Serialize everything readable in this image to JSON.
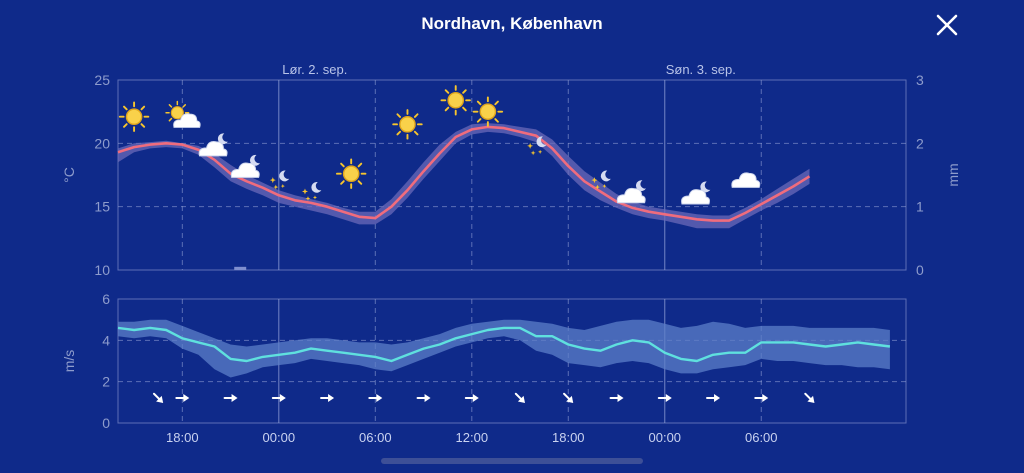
{
  "header": {
    "title": "Nordhavn, København",
    "close_icon": "close-icon"
  },
  "colors": {
    "background": "#0f2a8a",
    "temp_line": "#f06c7d",
    "temp_band": "#6b69b8",
    "wind_line": "#5fe0de",
    "wind_band": "#5c7fc8",
    "grid": "#8f9ed4"
  },
  "chart_data": [
    {
      "type": "line",
      "name": "temperature",
      "ylabel": "°C",
      "ylim": [
        10,
        25
      ],
      "yticks": [
        "10",
        "15",
        "20",
        "25"
      ],
      "y2label": "mm",
      "y2lim": [
        0,
        3
      ],
      "y2ticks": [
        "0",
        "1",
        "2",
        "3"
      ],
      "day_labels": [
        {
          "hour": 24,
          "label": "Lør. 2. sep."
        },
        {
          "hour": 48,
          "label": "Søn. 3. sep."
        }
      ],
      "x_hours": [
        14,
        15,
        16,
        17,
        18,
        19,
        20,
        21,
        22,
        23,
        24,
        25,
        26,
        27,
        28,
        29,
        30,
        31,
        32,
        33,
        34,
        35,
        36,
        37,
        38,
        39,
        40,
        41,
        42,
        43,
        44,
        45,
        46,
        47,
        48,
        49,
        50,
        51,
        52,
        53,
        54,
        55,
        56,
        57,
        58,
        59,
        60,
        61,
        62,
        63
      ],
      "temperature": [
        19.3,
        19.7,
        19.9,
        20.0,
        19.9,
        19.5,
        18.7,
        17.6,
        17.0,
        16.5,
        15.9,
        15.5,
        15.3,
        15.0,
        14.6,
        14.2,
        14.1,
        15.0,
        16.3,
        17.8,
        19.2,
        20.5,
        21.1,
        21.3,
        21.2,
        20.9,
        20.6,
        19.6,
        18.2,
        17.0,
        16.2,
        15.4,
        14.9,
        14.6,
        14.4,
        14.2,
        14.0,
        13.9,
        13.9,
        14.5,
        15.2,
        15.9,
        16.6,
        17.4
      ],
      "temp_high": [
        19.6,
        20.0,
        20.1,
        20.2,
        20.0,
        19.8,
        19.2,
        18.3,
        17.5,
        16.9,
        16.3,
        15.9,
        15.6,
        15.3,
        14.9,
        14.6,
        14.6,
        15.6,
        17.0,
        18.5,
        19.9,
        20.9,
        21.5,
        21.6,
        21.5,
        21.3,
        21.1,
        20.3,
        19.0,
        17.8,
        16.9,
        16.0,
        15.4,
        15.0,
        14.8,
        14.6,
        14.4,
        14.3,
        14.3,
        14.9,
        15.6,
        16.4,
        17.2,
        18.0
      ],
      "temp_low": [
        18.5,
        19.3,
        19.6,
        19.7,
        19.6,
        19.1,
        18.1,
        17.0,
        16.4,
        15.9,
        15.3,
        15.0,
        14.7,
        14.4,
        14.0,
        13.6,
        13.6,
        14.4,
        15.7,
        17.2,
        18.6,
        20.0,
        20.7,
        20.9,
        20.8,
        20.5,
        20.1,
        19.0,
        17.5,
        16.3,
        15.5,
        14.9,
        14.4,
        14.1,
        13.9,
        13.6,
        13.3,
        13.3,
        13.3,
        14.0,
        14.7,
        15.3,
        16.0,
        16.8
      ],
      "temp_hours": [
        14,
        15,
        16,
        17,
        18,
        19,
        20,
        21,
        22,
        23,
        24,
        25,
        26,
        27,
        28,
        29,
        30,
        31,
        32,
        33,
        34,
        35,
        36,
        37,
        38,
        39,
        40,
        41,
        42,
        43,
        44,
        45,
        46,
        47,
        48,
        49,
        50,
        51,
        52,
        53,
        54,
        55,
        56,
        57
      ],
      "precip_mm": [
        {
          "hour": 21.6,
          "value": 0.05
        }
      ],
      "weather_symbols": [
        {
          "hour": 15,
          "temp": 22.1,
          "icon": "sun-icon"
        },
        {
          "hour": 18,
          "temp": 22.1,
          "icon": "partly-cloudy-day-icon"
        },
        {
          "hour": 20,
          "temp": 19.8,
          "icon": "cloud-moon-icon"
        },
        {
          "hour": 22,
          "temp": 18.1,
          "icon": "cloud-moon-icon"
        },
        {
          "hour": 24,
          "temp": 17.1,
          "icon": "clear-night-icon"
        },
        {
          "hour": 26,
          "temp": 16.2,
          "icon": "clear-night-icon"
        },
        {
          "hour": 28.5,
          "temp": 17.6,
          "icon": "sun-icon"
        },
        {
          "hour": 32,
          "temp": 21.5,
          "icon": "sun-icon"
        },
        {
          "hour": 35,
          "temp": 23.4,
          "icon": "sun-icon"
        },
        {
          "hour": 37,
          "temp": 22.5,
          "icon": "sun-icon"
        },
        {
          "hour": 40,
          "temp": 19.8,
          "icon": "clear-night-icon"
        },
        {
          "hour": 44,
          "temp": 17.1,
          "icon": "clear-night-icon"
        },
        {
          "hour": 46,
          "temp": 16.1,
          "icon": "cloud-moon-icon"
        },
        {
          "hour": 50,
          "temp": 16.0,
          "icon": "cloud-moon-icon"
        },
        {
          "hour": 53,
          "temp": 17.0,
          "icon": "cloud-icon"
        }
      ]
    },
    {
      "type": "line",
      "name": "wind",
      "ylabel": "m/s",
      "ylim": [
        0,
        6
      ],
      "yticks": [
        "0",
        "2",
        "4",
        "6"
      ],
      "x_ticks": [
        {
          "hour": 18,
          "label": "18:00"
        },
        {
          "hour": 24,
          "label": "00:00"
        },
        {
          "hour": 30,
          "label": "06:00"
        },
        {
          "hour": 36,
          "label": "12:00"
        },
        {
          "hour": 42,
          "label": "18:00"
        },
        {
          "hour": 48,
          "label": "00:00"
        },
        {
          "hour": 54,
          "label": "06:00"
        }
      ],
      "wind_hours": [
        14,
        15,
        16,
        17,
        18,
        19,
        20,
        21,
        22,
        23,
        24,
        25,
        26,
        27,
        28,
        29,
        30,
        31,
        32,
        33,
        34,
        35,
        36,
        37,
        38,
        39,
        40,
        41,
        42,
        43,
        44,
        45,
        46,
        47,
        48,
        49,
        50,
        51,
        52,
        53,
        54,
        55,
        56,
        57,
        58,
        59,
        60,
        61,
        62
      ],
      "wind": [
        4.6,
        4.5,
        4.6,
        4.5,
        4.1,
        3.9,
        3.7,
        3.1,
        3.0,
        3.2,
        3.3,
        3.4,
        3.6,
        3.5,
        3.4,
        3.3,
        3.2,
        3.0,
        3.3,
        3.6,
        3.8,
        4.1,
        4.3,
        4.5,
        4.6,
        4.6,
        4.2,
        4.2,
        3.8,
        3.6,
        3.5,
        3.8,
        4.0,
        3.9,
        3.4,
        3.1,
        3.0,
        3.3,
        3.4,
        3.4,
        3.9,
        3.9,
        3.9,
        3.8,
        3.7,
        3.8,
        3.9,
        3.8,
        3.7
      ],
      "wind_high": [
        4.9,
        4.9,
        5.0,
        5.0,
        4.7,
        4.4,
        4.1,
        3.8,
        3.7,
        3.8,
        3.9,
        4.0,
        4.1,
        4.1,
        4.0,
        3.9,
        3.9,
        3.8,
        3.9,
        4.1,
        4.3,
        4.6,
        4.8,
        4.9,
        5.0,
        5.0,
        4.9,
        4.8,
        4.6,
        4.5,
        4.7,
        4.9,
        5.0,
        5.0,
        4.8,
        4.6,
        4.7,
        4.9,
        4.8,
        4.6,
        4.7,
        4.7,
        4.7,
        4.6,
        4.6,
        4.6,
        4.6,
        4.6,
        4.5
      ],
      "wind_low": [
        4.2,
        4.1,
        4.2,
        4.1,
        3.6,
        3.3,
        2.6,
        2.2,
        2.4,
        2.7,
        2.8,
        2.9,
        3.1,
        3.0,
        2.9,
        2.8,
        2.6,
        2.5,
        2.8,
        3.1,
        3.4,
        3.7,
        3.9,
        4.1,
        4.2,
        4.0,
        3.5,
        3.3,
        2.9,
        2.8,
        2.7,
        2.9,
        3.0,
        2.9,
        2.6,
        2.4,
        2.4,
        2.6,
        2.7,
        2.8,
        3.1,
        3.0,
        3.0,
        2.9,
        2.8,
        2.8,
        2.7,
        2.7,
        2.6
      ],
      "wind_directions": [
        {
          "hour": 16.5,
          "icon": "arrow-southeast-icon"
        },
        {
          "hour": 18,
          "icon": "arrow-east-icon"
        },
        {
          "hour": 21,
          "icon": "arrow-east-icon"
        },
        {
          "hour": 24,
          "icon": "arrow-east-icon"
        },
        {
          "hour": 27,
          "icon": "arrow-east-icon"
        },
        {
          "hour": 30,
          "icon": "arrow-east-icon"
        },
        {
          "hour": 33,
          "icon": "arrow-east-icon"
        },
        {
          "hour": 36,
          "icon": "arrow-east-icon"
        },
        {
          "hour": 39,
          "icon": "arrow-southeast-icon"
        },
        {
          "hour": 42,
          "icon": "arrow-southeast-icon"
        },
        {
          "hour": 45,
          "icon": "arrow-east-icon"
        },
        {
          "hour": 48,
          "icon": "arrow-east-icon"
        },
        {
          "hour": 51,
          "icon": "arrow-east-icon"
        },
        {
          "hour": 54,
          "icon": "arrow-east-icon"
        },
        {
          "hour": 57,
          "icon": "arrow-southeast-icon"
        }
      ]
    }
  ]
}
